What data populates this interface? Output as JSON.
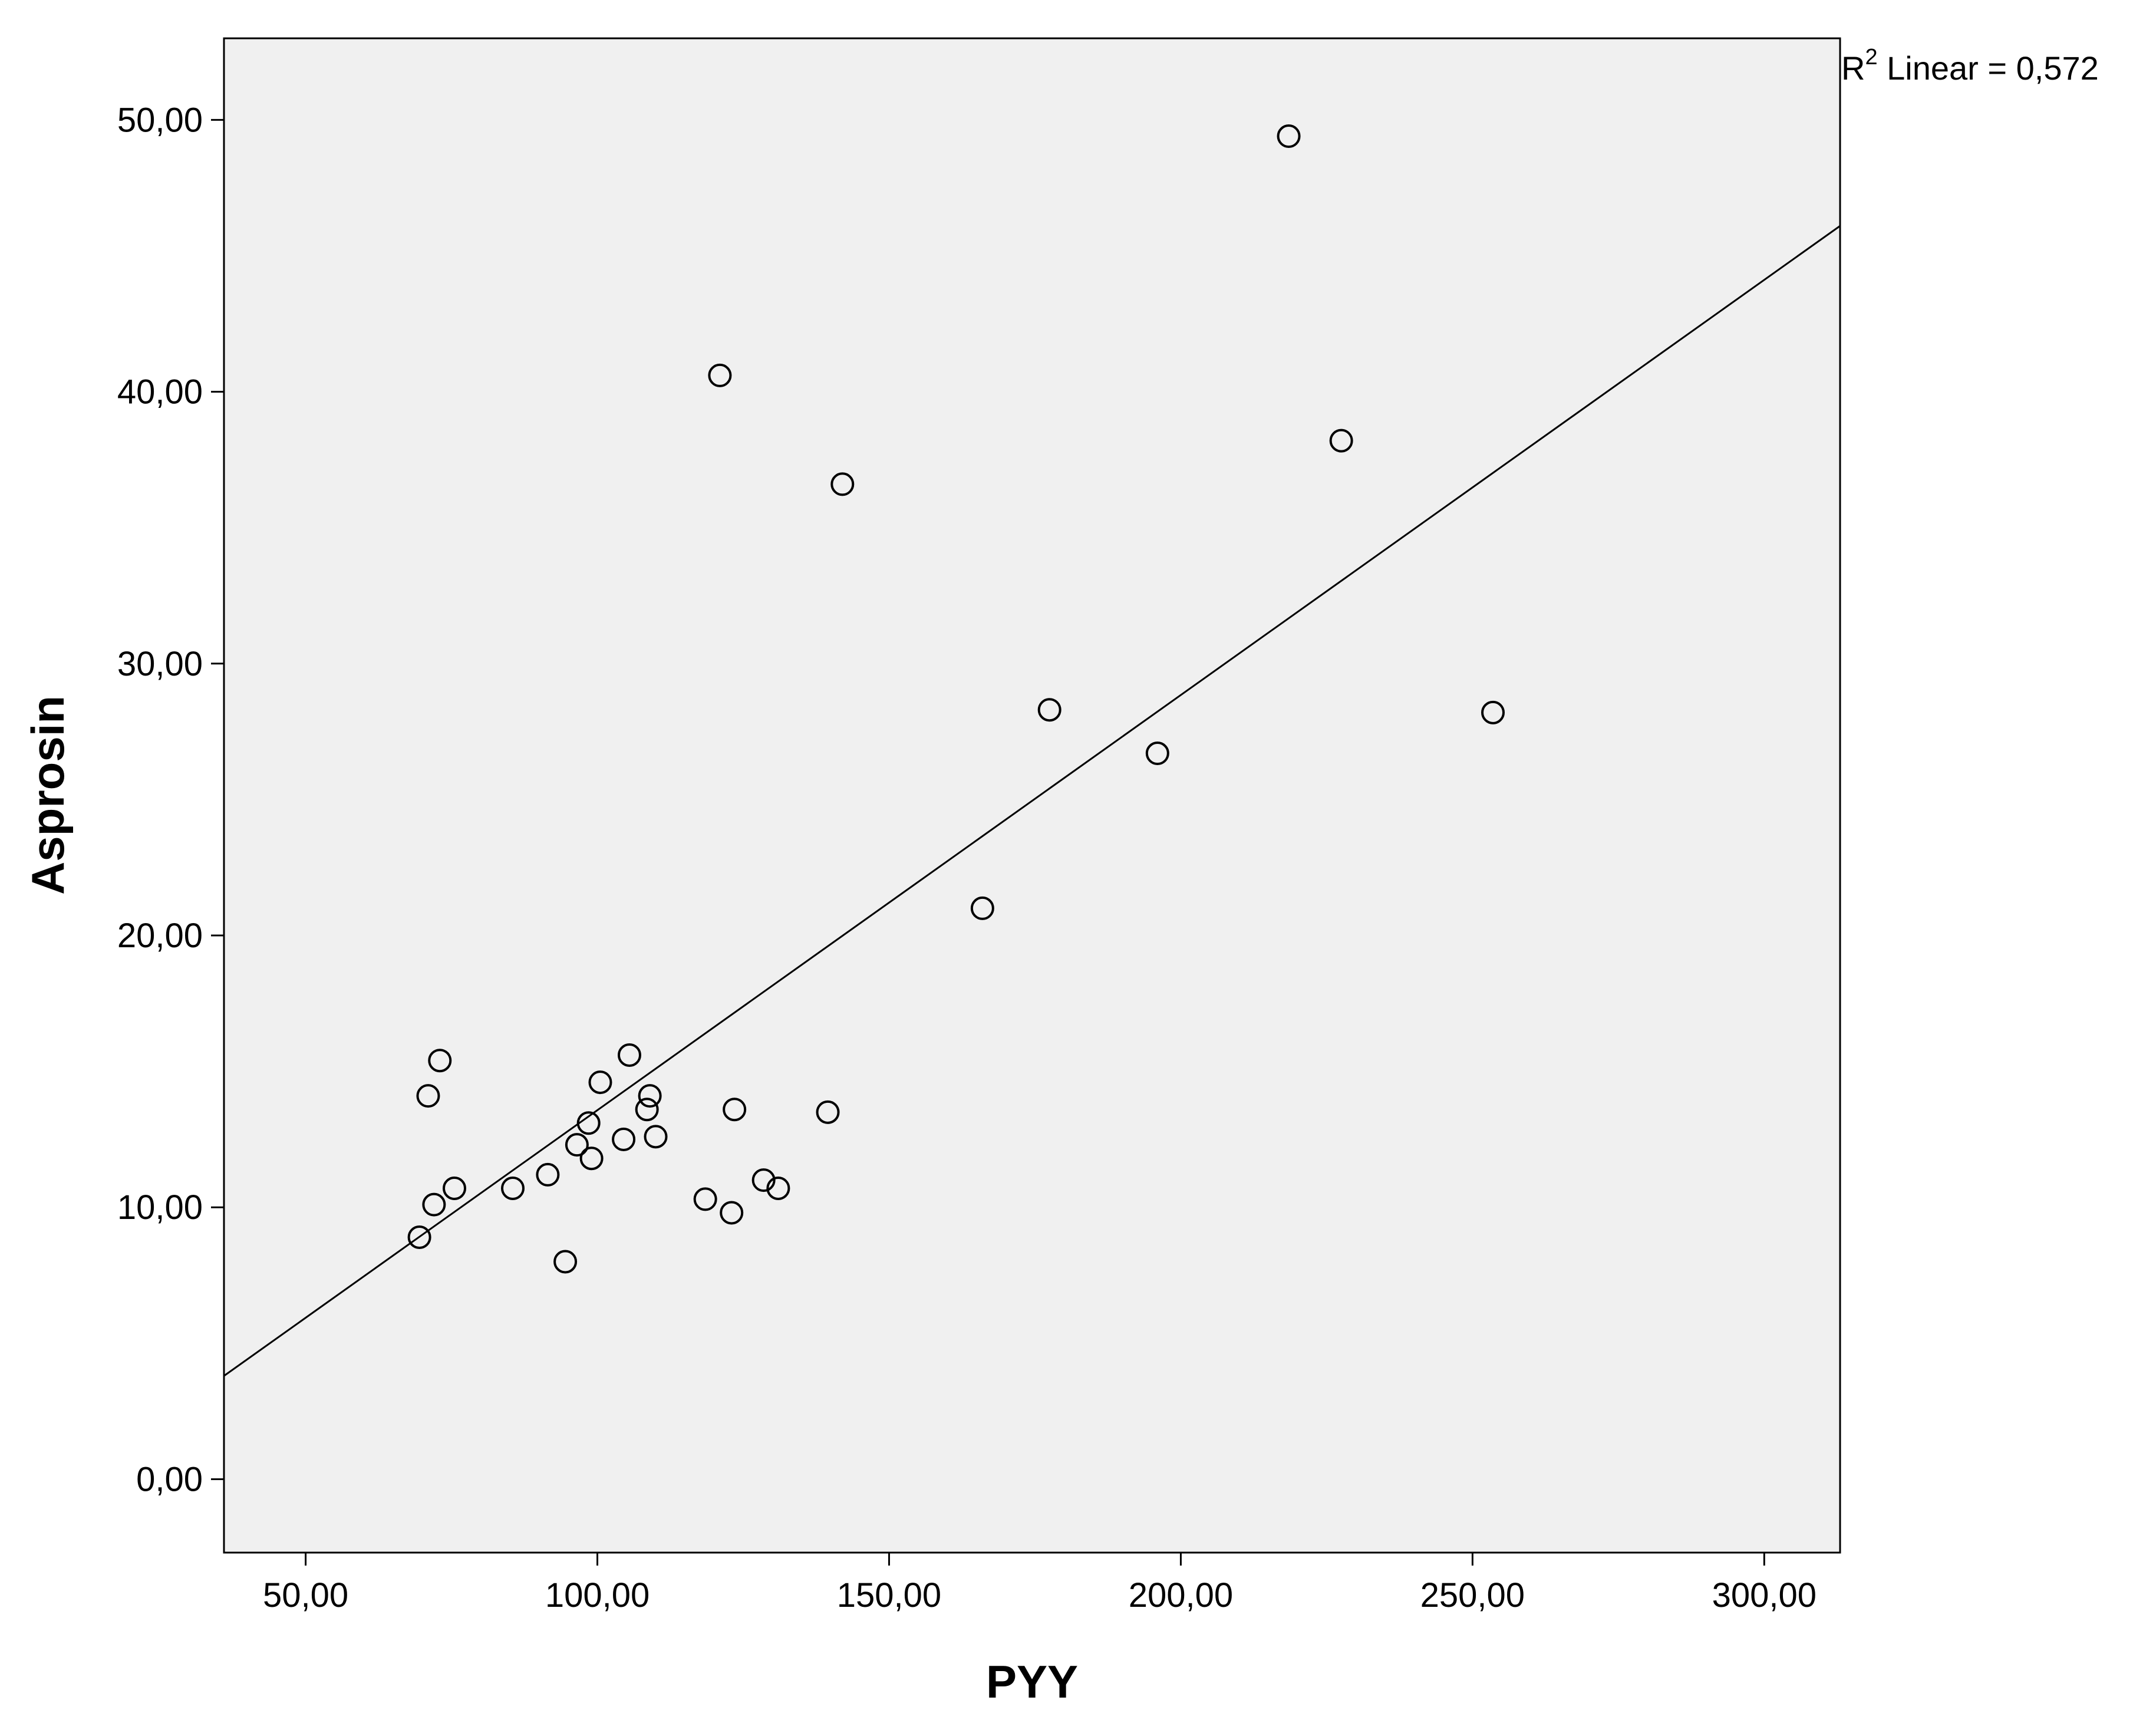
{
  "chart_data": {
    "type": "scatter",
    "xlabel": "PYY",
    "ylabel": "Asprosin",
    "xlim": [
      36,
      313
    ],
    "ylim": [
      -2.7,
      53.0
    ],
    "xticks": [
      50,
      100,
      150,
      200,
      250,
      300
    ],
    "xtick_labels": [
      "50,00",
      "100,00",
      "150,00",
      "200,00",
      "250,00",
      "300,00"
    ],
    "yticks": [
      0,
      10,
      20,
      30,
      40,
      50
    ],
    "ytick_labels": [
      "0,00",
      "10,00",
      "20,00",
      "30,00",
      "40,00",
      "50,00"
    ],
    "grid": false,
    "background": "#f0f0f0",
    "marker_color": "#000000",
    "fit_line": {
      "type": "linear",
      "label_prefix": "R",
      "label_sup": "2",
      "label_suffix": " Linear = 0,572",
      "start": [
        36,
        3.8
      ],
      "end": [
        313,
        46.1
      ]
    },
    "points": [
      {
        "x": 69.5,
        "y": 8.9
      },
      {
        "x": 71.0,
        "y": 14.1
      },
      {
        "x": 72.0,
        "y": 10.1
      },
      {
        "x": 73.0,
        "y": 15.4
      },
      {
        "x": 75.5,
        "y": 10.7
      },
      {
        "x": 85.5,
        "y": 10.7
      },
      {
        "x": 91.5,
        "y": 11.2
      },
      {
        "x": 94.5,
        "y": 8.0
      },
      {
        "x": 96.5,
        "y": 12.3
      },
      {
        "x": 98.5,
        "y": 13.1
      },
      {
        "x": 99.0,
        "y": 11.8
      },
      {
        "x": 100.5,
        "y": 14.6
      },
      {
        "x": 104.5,
        "y": 12.5
      },
      {
        "x": 105.5,
        "y": 15.6
      },
      {
        "x": 108.5,
        "y": 13.6
      },
      {
        "x": 109.0,
        "y": 14.1
      },
      {
        "x": 110.0,
        "y": 12.6
      },
      {
        "x": 118.5,
        "y": 10.3
      },
      {
        "x": 121.0,
        "y": 40.6
      },
      {
        "x": 123.0,
        "y": 9.8
      },
      {
        "x": 123.5,
        "y": 13.6
      },
      {
        "x": 128.5,
        "y": 11.0
      },
      {
        "x": 131.0,
        "y": 10.7
      },
      {
        "x": 139.5,
        "y": 13.5
      },
      {
        "x": 142.0,
        "y": 36.6
      },
      {
        "x": 166.0,
        "y": 21.0
      },
      {
        "x": 177.5,
        "y": 28.3
      },
      {
        "x": 196.0,
        "y": 26.7
      },
      {
        "x": 218.5,
        "y": 49.4
      },
      {
        "x": 227.5,
        "y": 38.2
      },
      {
        "x": 253.5,
        "y": 28.2
      }
    ]
  }
}
